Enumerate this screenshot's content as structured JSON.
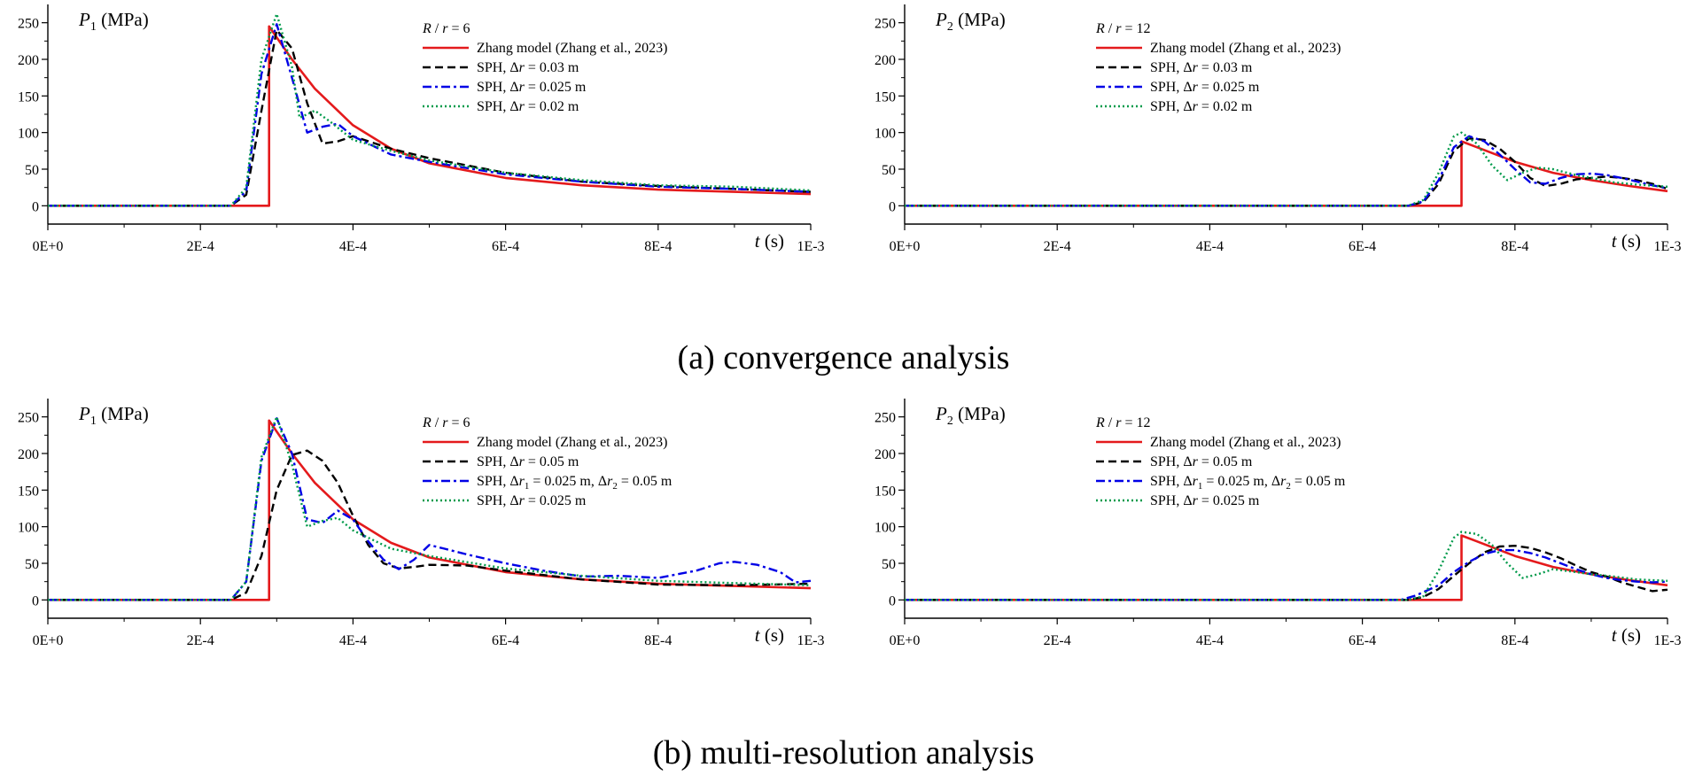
{
  "figure": {
    "captions": [
      "(a) convergence analysis",
      "(b) multi-resolution analysis"
    ]
  },
  "colors": {
    "zhang": "#e41a1c",
    "black": "#000000",
    "blue": "#0000e6",
    "green": "#009a4a"
  },
  "chart_data": [
    {
      "type": "line",
      "panel": "a-left",
      "ylabel_sym": "P",
      "ylabel_sub": "1",
      "ylabel_unit": "(MPa)",
      "xlabel_sym": "t",
      "xlabel_unit": "(s)",
      "xlim": [
        0,
        0.001
      ],
      "ylim": [
        -25,
        275
      ],
      "xticks": [
        0,
        0.0002,
        0.0004,
        0.0006,
        0.0008,
        0.001
      ],
      "xtick_labels": [
        "0E+0",
        "2E-4",
        "4E-4",
        "6E-4",
        "8E-4",
        "1E-3"
      ],
      "yticks": [
        0,
        50,
        100,
        150,
        200,
        250
      ],
      "ytick_labels": [
        "0",
        "50",
        "100",
        "150",
        "200",
        "250"
      ],
      "legend_title": "R / r = 6",
      "legend_title_parts": [
        "R",
        " / ",
        "r",
        " = 6"
      ],
      "series": [
        {
          "name": "Zhang model (Zhang et al., 2023)",
          "style": "solid",
          "color": "#e41a1c",
          "x": [
            0,
            0.00029,
            0.00029,
            0.0003,
            0.00032,
            0.00035,
            0.0004,
            0.00045,
            0.0005,
            0.0006,
            0.0007,
            0.0008,
            0.0009,
            0.001
          ],
          "y": [
            0,
            0,
            245,
            230,
            200,
            160,
            110,
            78,
            58,
            38,
            28,
            22,
            19,
            16
          ]
        },
        {
          "name": "SPH, Δr = 0.03 m",
          "parts": [
            "SPH, Δ",
            "r",
            " = 0.03 m"
          ],
          "style": "dash",
          "color": "#000000",
          "x": [
            0,
            0.00024,
            0.00026,
            0.00028,
            0.0003,
            0.00032,
            0.00034,
            0.00036,
            0.00038,
            0.0004,
            0.00045,
            0.0005,
            0.0006,
            0.0007,
            0.0008,
            0.0009,
            0.001
          ],
          "y": [
            0,
            0,
            15,
            130,
            240,
            215,
            140,
            85,
            88,
            95,
            78,
            65,
            45,
            33,
            27,
            23,
            19
          ]
        },
        {
          "name": "SPH, Δr = 0.025 m",
          "parts": [
            "SPH, Δ",
            "r",
            " = 0.025 m"
          ],
          "style": "dashdot",
          "color": "#0000e6",
          "x": [
            0,
            0.00024,
            0.00026,
            0.00028,
            0.0003,
            0.00032,
            0.00034,
            0.00036,
            0.00038,
            0.0004,
            0.00045,
            0.0005,
            0.0006,
            0.0007,
            0.0008,
            0.0009,
            0.001
          ],
          "y": [
            0,
            0,
            20,
            180,
            248,
            175,
            100,
            108,
            112,
            95,
            70,
            60,
            43,
            33,
            26,
            23,
            19
          ]
        },
        {
          "name": "SPH, Δr = 0.02 m",
          "parts": [
            "SPH, Δ",
            "r",
            " = 0.02 m"
          ],
          "style": "dot",
          "color": "#009a4a",
          "x": [
            0,
            0.00024,
            0.00026,
            0.00028,
            0.0003,
            0.00032,
            0.00033,
            0.00035,
            0.00037,
            0.0004,
            0.00045,
            0.0005,
            0.0006,
            0.0007,
            0.0008,
            0.0009,
            0.001
          ],
          "y": [
            0,
            0,
            25,
            200,
            262,
            190,
            120,
            130,
            115,
            90,
            75,
            62,
            45,
            35,
            28,
            26,
            21
          ]
        }
      ]
    },
    {
      "type": "line",
      "panel": "a-right",
      "ylabel_sym": "P",
      "ylabel_sub": "2",
      "ylabel_unit": "(MPa)",
      "xlabel_sym": "t",
      "xlabel_unit": "(s)",
      "xlim": [
        0,
        0.001
      ],
      "ylim": [
        -25,
        275
      ],
      "xticks": [
        0,
        0.0002,
        0.0004,
        0.0006,
        0.0008,
        0.001
      ],
      "xtick_labels": [
        "0E+0",
        "2E-4",
        "4E-4",
        "6E-4",
        "8E-4",
        "1E-3"
      ],
      "yticks": [
        0,
        50,
        100,
        150,
        200,
        250
      ],
      "ytick_labels": [
        "0",
        "50",
        "100",
        "150",
        "200",
        "250"
      ],
      "legend_title": "R / r = 12",
      "legend_title_parts": [
        "R",
        " / ",
        "r",
        " = 12"
      ],
      "series": [
        {
          "name": "Zhang model (Zhang et al., 2023)",
          "style": "solid",
          "color": "#e41a1c",
          "x": [
            0,
            0.00073,
            0.00073,
            0.00075,
            0.0008,
            0.00085,
            0.0009,
            0.00095,
            0.001
          ],
          "y": [
            0,
            0,
            88,
            80,
            60,
            45,
            35,
            27,
            20
          ]
        },
        {
          "name": "SPH, Δr = 0.03 m",
          "parts": [
            "SPH, Δ",
            "r",
            " = 0.03 m"
          ],
          "style": "dash",
          "color": "#000000",
          "x": [
            0,
            0.00066,
            0.00068,
            0.0007,
            0.00072,
            0.00074,
            0.00076,
            0.00078,
            0.0008,
            0.00082,
            0.00084,
            0.00086,
            0.00088,
            0.0009,
            0.00092,
            0.00094,
            0.00096,
            0.00098,
            0.001
          ],
          "y": [
            0,
            0,
            5,
            30,
            75,
            92,
            90,
            78,
            60,
            38,
            27,
            30,
            36,
            38,
            40,
            38,
            35,
            30,
            23
          ]
        },
        {
          "name": "SPH, Δr = 0.025 m",
          "parts": [
            "SPH, Δ",
            "r",
            " = 0.025 m"
          ],
          "style": "dashdot",
          "color": "#0000e6",
          "x": [
            0,
            0.00066,
            0.00068,
            0.0007,
            0.00072,
            0.00074,
            0.00076,
            0.00078,
            0.0008,
            0.00082,
            0.00084,
            0.00086,
            0.00088,
            0.0009,
            0.00092,
            0.00094,
            0.00096,
            0.00098,
            0.001
          ],
          "y": [
            0,
            0,
            6,
            35,
            80,
            95,
            88,
            70,
            50,
            32,
            30,
            38,
            43,
            44,
            42,
            38,
            33,
            28,
            24
          ]
        },
        {
          "name": "SPH, Δr = 0.02 m",
          "parts": [
            "SPH, Δ",
            "r",
            " = 0.02 m"
          ],
          "style": "dot",
          "color": "#009a4a",
          "x": [
            0,
            0.00066,
            0.00068,
            0.0007,
            0.00072,
            0.00073,
            0.00075,
            0.00077,
            0.00079,
            0.00081,
            0.00083,
            0.00085,
            0.00088,
            0.0009,
            0.00093,
            0.00096,
            0.001
          ],
          "y": [
            0,
            0,
            8,
            45,
            95,
            100,
            85,
            55,
            35,
            45,
            52,
            50,
            42,
            38,
            32,
            29,
            26
          ]
        }
      ]
    },
    {
      "type": "line",
      "panel": "b-left",
      "ylabel_sym": "P",
      "ylabel_sub": "1",
      "ylabel_unit": "(MPa)",
      "xlabel_sym": "t",
      "xlabel_unit": "(s)",
      "xlim": [
        0,
        0.001
      ],
      "ylim": [
        -25,
        275
      ],
      "xticks": [
        0,
        0.0002,
        0.0004,
        0.0006,
        0.0008,
        0.001
      ],
      "xtick_labels": [
        "0E+0",
        "2E-4",
        "4E-4",
        "6E-4",
        "8E-4",
        "1E-3"
      ],
      "yticks": [
        0,
        50,
        100,
        150,
        200,
        250
      ],
      "ytick_labels": [
        "0",
        "50",
        "100",
        "150",
        "200",
        "250"
      ],
      "legend_title": "R / r = 6",
      "legend_title_parts": [
        "R",
        " / ",
        "r",
        " = 6"
      ],
      "series": [
        {
          "name": "Zhang model (Zhang et al., 2023)",
          "style": "solid",
          "color": "#e41a1c",
          "x": [
            0,
            0.00029,
            0.00029,
            0.0003,
            0.00032,
            0.00035,
            0.0004,
            0.00045,
            0.0005,
            0.0006,
            0.0007,
            0.0008,
            0.0009,
            0.001
          ],
          "y": [
            0,
            0,
            245,
            230,
            200,
            160,
            110,
            78,
            58,
            38,
            28,
            22,
            19,
            16
          ]
        },
        {
          "name": "SPH, Δr = 0.05 m",
          "parts": [
            "SPH, Δ",
            "r",
            " = 0.05 m"
          ],
          "style": "dash",
          "color": "#000000",
          "x": [
            0,
            0.00024,
            0.00026,
            0.00028,
            0.0003,
            0.00032,
            0.00034,
            0.00036,
            0.00038,
            0.0004,
            0.00042,
            0.00044,
            0.00046,
            0.00048,
            0.0005,
            0.00055,
            0.0006,
            0.0007,
            0.0008,
            0.0009,
            0.001
          ],
          "y": [
            0,
            0,
            10,
            60,
            150,
            198,
            204,
            190,
            160,
            115,
            75,
            50,
            43,
            45,
            48,
            47,
            40,
            28,
            21,
            20,
            22
          ]
        },
        {
          "name": "SPH, Δr1 = 0.025 m, Δr2 = 0.05 m",
          "parts": [
            "SPH, Δ",
            "r",
            "1",
            " = 0.025 m, Δ",
            "r",
            "2",
            " = 0.05 m"
          ],
          "style": "dashdot",
          "color": "#0000e6",
          "x": [
            0,
            0.00024,
            0.00026,
            0.00028,
            0.0003,
            0.00032,
            0.00034,
            0.00036,
            0.00038,
            0.0004,
            0.00042,
            0.00044,
            0.00046,
            0.00048,
            0.0005,
            0.00052,
            0.00055,
            0.0006,
            0.00065,
            0.0007,
            0.00075,
            0.0008,
            0.00085,
            0.00088,
            0.0009,
            0.00093,
            0.00096,
            0.00098,
            0.001
          ],
          "y": [
            0,
            0,
            25,
            190,
            248,
            200,
            110,
            105,
            122,
            110,
            80,
            55,
            42,
            55,
            75,
            70,
            62,
            50,
            40,
            32,
            33,
            30,
            40,
            50,
            52,
            48,
            38,
            24,
            26
          ]
        },
        {
          "name": "SPH, Δr = 0.025 m",
          "parts": [
            "SPH, Δ",
            "r",
            " = 0.025 m"
          ],
          "style": "dot",
          "color": "#009a4a",
          "x": [
            0,
            0.00024,
            0.00026,
            0.00028,
            0.0003,
            0.00032,
            0.00034,
            0.00036,
            0.00038,
            0.0004,
            0.00045,
            0.0005,
            0.0006,
            0.0007,
            0.0008,
            0.0009,
            0.001
          ],
          "y": [
            0,
            0,
            25,
            195,
            250,
            185,
            100,
            108,
            112,
            95,
            70,
            60,
            43,
            33,
            26,
            23,
            20
          ]
        }
      ]
    },
    {
      "type": "line",
      "panel": "b-right",
      "ylabel_sym": "P",
      "ylabel_sub": "2",
      "ylabel_unit": "(MPa)",
      "xlabel_sym": "t",
      "xlabel_unit": "(s)",
      "xlim": [
        0,
        0.001
      ],
      "ylim": [
        -25,
        275
      ],
      "xticks": [
        0,
        0.0002,
        0.0004,
        0.0006,
        0.0008,
        0.001
      ],
      "xtick_labels": [
        "0E+0",
        "2E-4",
        "4E-4",
        "6E-4",
        "8E-4",
        "1E-3"
      ],
      "yticks": [
        0,
        50,
        100,
        150,
        200,
        250
      ],
      "ytick_labels": [
        "0",
        "50",
        "100",
        "150",
        "200",
        "250"
      ],
      "legend_title": "R / r = 12",
      "legend_title_parts": [
        "R",
        " / ",
        "r",
        " = 12"
      ],
      "series": [
        {
          "name": "Zhang model (Zhang et al., 2023)",
          "style": "solid",
          "color": "#e41a1c",
          "x": [
            0,
            0.00073,
            0.00073,
            0.00075,
            0.0008,
            0.00085,
            0.0009,
            0.00095,
            0.001
          ],
          "y": [
            0,
            0,
            88,
            80,
            60,
            45,
            35,
            27,
            20
          ]
        },
        {
          "name": "SPH, Δr = 0.05 m",
          "parts": [
            "SPH, Δ",
            "r",
            " = 0.05 m"
          ],
          "style": "dash",
          "color": "#000000",
          "x": [
            0,
            0.00066,
            0.00068,
            0.0007,
            0.00072,
            0.00074,
            0.00076,
            0.00078,
            0.0008,
            0.00082,
            0.00084,
            0.00086,
            0.00088,
            0.0009,
            0.00092,
            0.00094,
            0.00096,
            0.00098,
            0.001
          ],
          "y": [
            0,
            0,
            4,
            15,
            33,
            50,
            65,
            73,
            74,
            71,
            65,
            57,
            47,
            38,
            32,
            24,
            18,
            12,
            14
          ]
        },
        {
          "name": "SPH, Δr1 = 0.025 m, Δr2 = 0.05 m",
          "parts": [
            "SPH, Δ",
            "r",
            "1",
            " = 0.025 m, Δ",
            "r",
            "2",
            " = 0.05 m"
          ],
          "style": "dashdot",
          "color": "#0000e6",
          "x": [
            0,
            0.00065,
            0.00067,
            0.0007,
            0.00072,
            0.00074,
            0.00076,
            0.00078,
            0.0008,
            0.00082,
            0.00084,
            0.00086,
            0.00088,
            0.0009,
            0.00092,
            0.00094,
            0.00096,
            0.00098,
            0.001
          ],
          "y": [
            0,
            0,
            6,
            20,
            38,
            52,
            63,
            68,
            68,
            64,
            58,
            50,
            42,
            35,
            30,
            27,
            25,
            24,
            25
          ]
        },
        {
          "name": "SPH, Δr = 0.025 m",
          "parts": [
            "SPH, Δ",
            "r",
            " = 0.025 m"
          ],
          "style": "dot",
          "color": "#009a4a",
          "x": [
            0,
            0.00066,
            0.00068,
            0.0007,
            0.00072,
            0.00073,
            0.00075,
            0.00077,
            0.00079,
            0.00081,
            0.00083,
            0.00085,
            0.00088,
            0.0009,
            0.00093,
            0.00096,
            0.001
          ],
          "y": [
            0,
            0,
            5,
            40,
            85,
            93,
            90,
            75,
            50,
            30,
            35,
            42,
            38,
            35,
            32,
            28,
            26
          ]
        }
      ]
    }
  ]
}
